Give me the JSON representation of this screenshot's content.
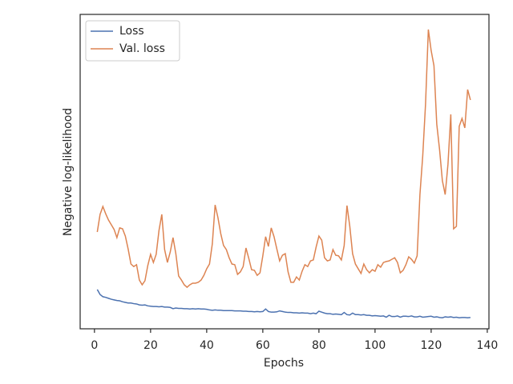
{
  "chart_data": {
    "type": "line",
    "x_label": "Epochs",
    "y_label": "Negative log-likelihood",
    "xlim": [
      -5.1,
      140.6
    ],
    "xticks": [
      0,
      20,
      40,
      60,
      80,
      100,
      120,
      140
    ],
    "ylim": [
      0,
      100
    ],
    "legend": "upper left",
    "x": [
      1,
      2,
      3,
      4,
      5,
      6,
      7,
      8,
      9,
      10,
      11,
      12,
      13,
      14,
      15,
      16,
      17,
      18,
      19,
      20,
      21,
      22,
      23,
      24,
      25,
      26,
      27,
      28,
      29,
      30,
      31,
      32,
      33,
      34,
      35,
      36,
      37,
      38,
      39,
      40,
      41,
      42,
      43,
      44,
      45,
      46,
      47,
      48,
      49,
      50,
      51,
      52,
      53,
      54,
      55,
      56,
      57,
      58,
      59,
      60,
      61,
      62,
      63,
      64,
      65,
      66,
      67,
      68,
      69,
      70,
      71,
      72,
      73,
      74,
      75,
      76,
      77,
      78,
      79,
      80,
      81,
      82,
      83,
      84,
      85,
      86,
      87,
      88,
      89,
      90,
      91,
      92,
      93,
      94,
      95,
      96,
      97,
      98,
      99,
      100,
      101,
      102,
      103,
      104,
      105,
      106,
      107,
      108,
      109,
      110,
      111,
      112,
      113,
      114,
      115,
      116,
      117,
      118,
      119,
      120,
      121,
      122,
      123,
      124,
      125,
      126,
      127,
      128,
      129,
      130,
      131,
      132,
      133,
      134
    ],
    "series": [
      {
        "name": "Loss",
        "color": "#4c72b0",
        "values": [
          12.5,
          10.9,
          10.2,
          10.0,
          9.7,
          9.4,
          9.2,
          9.0,
          8.9,
          8.6,
          8.4,
          8.2,
          8.2,
          8.0,
          7.9,
          7.6,
          7.5,
          7.6,
          7.3,
          7.2,
          7.1,
          7.1,
          7.0,
          7.1,
          6.9,
          6.9,
          6.8,
          6.4,
          6.6,
          6.5,
          6.5,
          6.4,
          6.4,
          6.3,
          6.4,
          6.3,
          6.4,
          6.3,
          6.3,
          6.2,
          6.0,
          5.9,
          6.0,
          5.9,
          5.9,
          5.8,
          5.8,
          5.8,
          5.8,
          5.7,
          5.7,
          5.7,
          5.6,
          5.6,
          5.5,
          5.5,
          5.4,
          5.5,
          5.4,
          5.5,
          6.3,
          5.5,
          5.3,
          5.3,
          5.4,
          5.7,
          5.5,
          5.3,
          5.2,
          5.2,
          5.1,
          5.1,
          5.0,
          5.1,
          5.0,
          5.0,
          4.8,
          5.0,
          4.8,
          5.6,
          5.3,
          5.0,
          4.8,
          4.8,
          4.6,
          4.7,
          4.6,
          4.5,
          5.2,
          4.5,
          4.4,
          5.0,
          4.5,
          4.5,
          4.4,
          4.5,
          4.3,
          4.3,
          4.1,
          4.2,
          4.1,
          4.0,
          4.1,
          3.7,
          4.3,
          3.9,
          3.9,
          4.1,
          3.7,
          4.0,
          4.0,
          3.9,
          4.1,
          3.8,
          3.8,
          4.0,
          3.7,
          3.8,
          3.9,
          4.0,
          3.7,
          3.8,
          3.6,
          3.5,
          3.8,
          3.7,
          3.8,
          3.6,
          3.7,
          3.5,
          3.6,
          3.6,
          3.5,
          3.6
        ]
      },
      {
        "name": "Val. loss",
        "color": "#dd8452",
        "values": [
          30.8,
          36.4,
          38.9,
          36.6,
          34.6,
          33.1,
          31.6,
          29.0,
          32.1,
          31.8,
          29.5,
          25.4,
          20.6,
          19.8,
          20.4,
          15.5,
          14.0,
          15.3,
          20.1,
          23.7,
          21.1,
          23.7,
          31.3,
          36.4,
          25.2,
          21.1,
          24.4,
          29.0,
          23.9,
          16.8,
          15.5,
          14.0,
          13.2,
          14.0,
          14.5,
          14.5,
          14.8,
          15.5,
          17.0,
          19.1,
          20.6,
          27.0,
          39.4,
          35.4,
          30.3,
          26.5,
          25.2,
          22.6,
          20.6,
          20.4,
          17.3,
          18.1,
          19.8,
          25.7,
          22.4,
          18.8,
          18.6,
          17.0,
          17.8,
          23.2,
          29.3,
          26.2,
          32.1,
          29.3,
          25.4,
          21.6,
          23.4,
          23.9,
          18.1,
          14.8,
          14.8,
          16.5,
          15.5,
          18.3,
          20.4,
          19.8,
          21.6,
          21.9,
          26.0,
          29.5,
          28.2,
          22.6,
          21.6,
          21.9,
          25.2,
          23.4,
          23.2,
          21.9,
          26.5,
          39.2,
          32.6,
          23.9,
          20.6,
          19.1,
          17.6,
          20.6,
          18.8,
          17.8,
          18.8,
          18.3,
          20.4,
          19.6,
          21.1,
          21.4,
          21.6,
          22.1,
          22.6,
          21.1,
          17.8,
          18.6,
          20.4,
          22.9,
          22.1,
          20.9,
          23.2,
          42.7,
          55.0,
          71.5,
          95.2,
          88.5,
          83.7,
          65.1,
          57.0,
          47.1,
          42.7,
          52.4,
          68.2,
          31.8,
          32.6,
          64.4,
          66.9,
          63.9,
          76.1,
          72.8
        ]
      }
    ]
  }
}
